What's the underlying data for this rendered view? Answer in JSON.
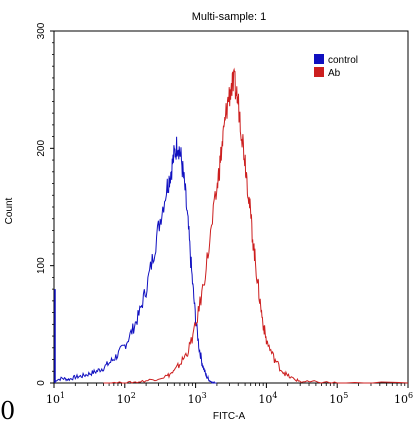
{
  "chart_data": {
    "type": "line",
    "title": "Multi-sample: 1",
    "xlabel": "FITC-A",
    "ylabel": "Count",
    "x_scale": "log",
    "xlim": [
      10,
      1000000
    ],
    "ylim": [
      0,
      300
    ],
    "grid": false,
    "legend_position": "top-right",
    "x_ticks": [
      {
        "base": "10",
        "exp": "1",
        "value": 10
      },
      {
        "base": "10",
        "exp": "2",
        "value": 100
      },
      {
        "base": "10",
        "exp": "3",
        "value": 1000
      },
      {
        "base": "10",
        "exp": "4",
        "value": 10000
      },
      {
        "base": "10",
        "exp": "5",
        "value": 100000
      },
      {
        "base": "10",
        "exp": "6",
        "value": 1000000
      }
    ],
    "y_ticks": [
      "0",
      "100",
      "200",
      "300"
    ],
    "stray_label": "0",
    "series": [
      {
        "name": "control",
        "color": "#1010c0",
        "points": [
          [
            10,
            2
          ],
          [
            13,
            4
          ],
          [
            16,
            3
          ],
          [
            20,
            5
          ],
          [
            25,
            6
          ],
          [
            32,
            8
          ],
          [
            40,
            10
          ],
          [
            50,
            13
          ],
          [
            63,
            18
          ],
          [
            79,
            24
          ],
          [
            100,
            32
          ],
          [
            126,
            44
          ],
          [
            158,
            58
          ],
          [
            200,
            80
          ],
          [
            251,
            108
          ],
          [
            316,
            140
          ],
          [
            398,
            168
          ],
          [
            447,
            180
          ],
          [
            501,
            195
          ],
          [
            562,
            205
          ],
          [
            631,
            190
          ],
          [
            708,
            165
          ],
          [
            794,
            130
          ],
          [
            891,
            90
          ],
          [
            1000,
            55
          ],
          [
            1122,
            30
          ],
          [
            1259,
            15
          ],
          [
            1413,
            6
          ],
          [
            1585,
            2
          ],
          [
            1778,
            0
          ],
          [
            1995,
            0
          ]
        ]
      },
      {
        "name": "Ab",
        "color": "#cc1f1f",
        "points": [
          [
            50,
            0
          ],
          [
            100,
            0
          ],
          [
            158,
            1
          ],
          [
            251,
            3
          ],
          [
            398,
            6
          ],
          [
            501,
            10
          ],
          [
            631,
            18
          ],
          [
            794,
            28
          ],
          [
            1000,
            48
          ],
          [
            1259,
            80
          ],
          [
            1585,
            120
          ],
          [
            1995,
            165
          ],
          [
            2239,
            190
          ],
          [
            2512,
            215
          ],
          [
            2818,
            238
          ],
          [
            3162,
            252
          ],
          [
            3548,
            255
          ],
          [
            3981,
            240
          ],
          [
            4467,
            215
          ],
          [
            5012,
            190
          ],
          [
            5623,
            160
          ],
          [
            6310,
            128
          ],
          [
            7079,
            100
          ],
          [
            7943,
            74
          ],
          [
            8913,
            52
          ],
          [
            10000,
            36
          ],
          [
            12589,
            22
          ],
          [
            15849,
            12
          ],
          [
            19953,
            6
          ],
          [
            25119,
            3
          ],
          [
            31623,
            1
          ],
          [
            50119,
            1
          ],
          [
            100000,
            0
          ],
          [
            1000000,
            0
          ]
        ]
      }
    ]
  }
}
